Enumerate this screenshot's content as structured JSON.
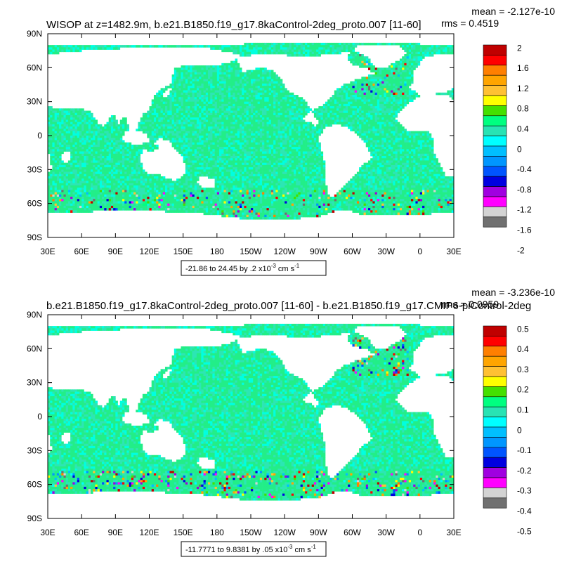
{
  "chart_data": [
    {
      "type": "heatmap",
      "title": "WISOP at z=1482.9m, b.e21.B1850.f19_g17.8kaControl-2deg_proto.007 [11-60]",
      "stats": {
        "mean": "mean = -2.127e-10",
        "rms": "rms = 0.4519"
      },
      "xlabel": "",
      "ylabel": "",
      "x_ticks": [
        "30E",
        "60E",
        "90E",
        "120E",
        "150E",
        "180",
        "150W",
        "120W",
        "90W",
        "60W",
        "30W",
        "0",
        "30E"
      ],
      "y_ticks": [
        "90N",
        "60N",
        "30N",
        "0",
        "30S",
        "60S",
        "90S"
      ],
      "range_text": "-21.86 to 24.45 by .2 x10",
      "range_exp": "-3",
      "range_units": " cm s",
      "range_units_exp": "-1",
      "colorbar": {
        "labels": [
          "2",
          "1.6",
          "1.2",
          "0.8",
          "0.4",
          "0",
          "-0.4",
          "-0.8",
          "-1.2",
          "-1.6",
          "-2"
        ],
        "colors": [
          "#C00000",
          "#FF0000",
          "#FF7F00",
          "#FFA500",
          "#FFC133",
          "#FFFF00",
          "#44E000",
          "#00FF80",
          "#28E3B4",
          "#00FFFF",
          "#00BFFF",
          "#0096FF",
          "#0055FF",
          "#0000E0",
          "#A000E0",
          "#FF00FF",
          "#D3D3D3",
          "#707070"
        ]
      },
      "dominant_ocean_color": "#22EE88"
    },
    {
      "type": "heatmap",
      "title": "b.e21.B1850.f19_g17.8kaControl-2deg_proto.007 [11-60] - b.e21.B1850.f19_g17.CMIP6-piControl-2deg",
      "stats": {
        "mean": "mean = -3.236e-10",
        "rms": "rms = 0.0959"
      },
      "xlabel": "",
      "ylabel": "",
      "x_ticks": [
        "30E",
        "60E",
        "90E",
        "120E",
        "150E",
        "180",
        "150W",
        "120W",
        "90W",
        "60W",
        "30W",
        "0",
        "30E"
      ],
      "y_ticks": [
        "90N",
        "60N",
        "30N",
        "0",
        "30S",
        "60S",
        "90S"
      ],
      "range_text": "-11.7771 to 9.8381 by .05 x10",
      "range_exp": "-3",
      "range_units": " cm s",
      "range_units_exp": "-1",
      "colorbar": {
        "labels": [
          "0.5",
          "0.4",
          "0.3",
          "0.2",
          "0.1",
          "0",
          "-0.1",
          "-0.2",
          "-0.3",
          "-0.4",
          "-0.5"
        ],
        "colors": [
          "#C00000",
          "#FF0000",
          "#FF7F00",
          "#FFA500",
          "#FFC133",
          "#FFFF00",
          "#44E000",
          "#00FF80",
          "#28E3B4",
          "#00FFFF",
          "#00BFFF",
          "#0096FF",
          "#0055FF",
          "#0000E0",
          "#A000E0",
          "#FF00FF",
          "#D3D3D3",
          "#707070"
        ]
      },
      "dominant_ocean_color": "#22EE88"
    }
  ]
}
